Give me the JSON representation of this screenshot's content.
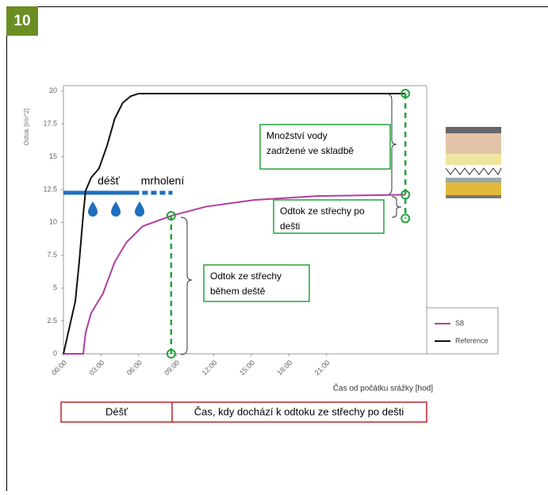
{
  "figure_number": "10",
  "chart_data": {
    "type": "line",
    "y_label": "Odtok  [l/m^2]",
    "x_label": "Čas od počátku srážky [hod]",
    "xlim": [
      0,
      29
    ],
    "xticks": [
      {
        "value": 0,
        "label": "00:00"
      },
      {
        "value": 3,
        "label": "03:00"
      },
      {
        "value": 6,
        "label": "06:00"
      },
      {
        "value": 9,
        "label": "09:00"
      },
      {
        "value": 12,
        "label": "12:00"
      },
      {
        "value": 15,
        "label": "15:00"
      },
      {
        "value": 18,
        "label": "18:00"
      },
      {
        "value": 21,
        "label": "21:00"
      }
    ],
    "ylim": [
      0,
      20.4
    ],
    "yticks": [
      0,
      2.5,
      5,
      7.5,
      10,
      12.5,
      15,
      17.5,
      20
    ],
    "legend": "bottom-right",
    "series": [
      {
        "name": "S8",
        "color": "#b03fa0",
        "x": [
          0,
          1.58,
          1.77,
          2.21,
          3.16,
          4.1,
          5.05,
          6.32,
          8.6,
          11.4,
          15.2,
          20.2,
          27.3
        ],
        "values": [
          0,
          0,
          1.6,
          3.1,
          4.6,
          7,
          8.5,
          9.7,
          10.5,
          11.2,
          11.7,
          12,
          12.1
        ]
      },
      {
        "name": "Reference",
        "color": "#111111",
        "x": [
          0,
          0.95,
          1.26,
          1.58,
          1.77,
          2.21,
          2.84,
          3.47,
          4.1,
          4.74,
          5.37,
          6.0,
          27.3
        ],
        "values": [
          0,
          4,
          7,
          10.6,
          12.4,
          13.4,
          14.1,
          15.8,
          17.9,
          19.1,
          19.6,
          19.8,
          19.8
        ]
      }
    ],
    "rain": {
      "label": "déšť",
      "xlim": [
        0,
        5.6
      ]
    },
    "drizzle": {
      "label": "mrholení",
      "xlim": [
        5.6,
        8.7
      ]
    },
    "markers": {
      "color": "#22a33a",
      "x": [
        8.6,
        8.6,
        27.3,
        27.3,
        27.3
      ],
      "y": [
        0,
        10.5,
        19.8,
        12.1,
        10.3
      ]
    },
    "annotations": [
      {
        "lines": [
          "Množství vody",
          "zadržené ve skladbě"
        ]
      },
      {
        "lines": [
          "Odtok ze střechy po",
          "dešti"
        ]
      },
      {
        "lines": [
          "Odtok ze střechy",
          "během deště"
        ]
      }
    ]
  },
  "table": {
    "cells": [
      "Déšť",
      "Čas, kdy dochází k odtoku ze střechy po dešti"
    ]
  }
}
